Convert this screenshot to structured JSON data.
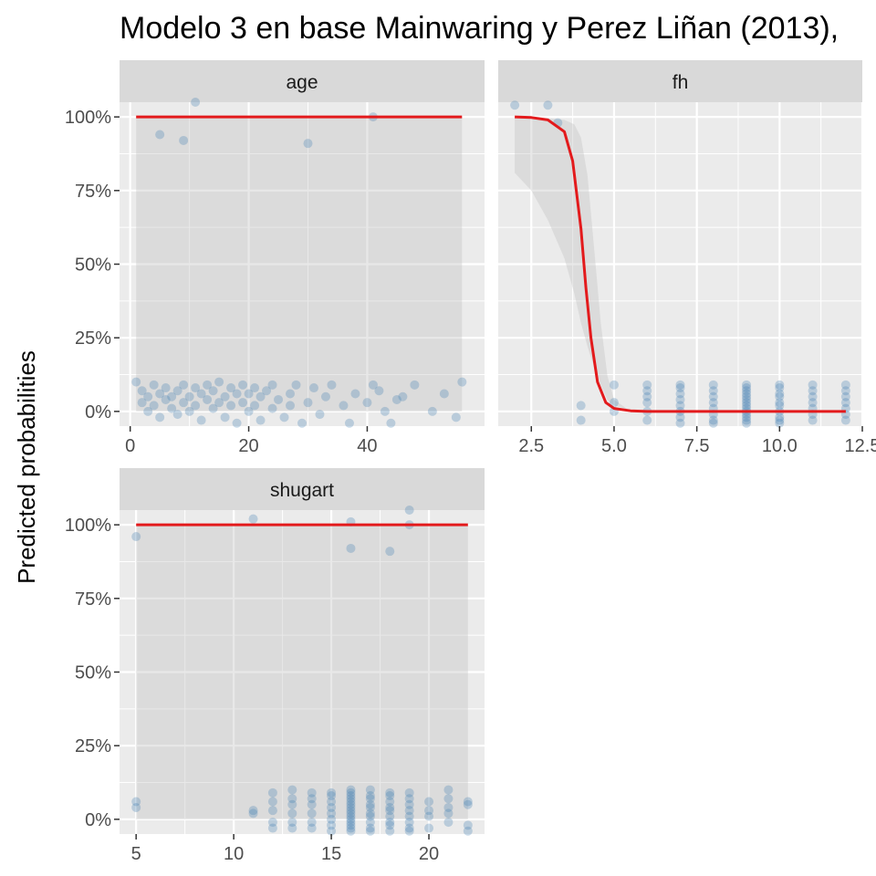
{
  "chart_data": {
    "type": "scatter",
    "title": "Modelo 3 en base Mainwaring y Perez Liñan (2013),",
    "ylabel": "Predicted probabilities",
    "xlabel": "",
    "y_tick_labels": [
      "0%",
      "25%",
      "50%",
      "75%",
      "100%"
    ],
    "ylim": [
      -0.05,
      1.05
    ],
    "grid": true,
    "colors": {
      "points": "#4682B4",
      "line": "#E31A1C",
      "band": "#BEBEBE",
      "panel": "#EBEBEB",
      "strip": "#D9D9D9"
    },
    "panels": [
      {
        "label": "age",
        "xlim": [
          -1.8,
          59.8
        ],
        "x_ticks": [
          0,
          20,
          40
        ],
        "x_tick_labels": [
          "0",
          "20",
          "40"
        ],
        "band": [
          [
            1,
            0.0,
            1.0
          ],
          [
            56,
            0.0,
            1.0
          ]
        ],
        "curve": [
          [
            1,
            1.0
          ],
          [
            56,
            1.0
          ]
        ],
        "points": [
          [
            5,
            0.94
          ],
          [
            9,
            0.92
          ],
          [
            11,
            1.05
          ],
          [
            30,
            0.91
          ],
          [
            41,
            1.0
          ],
          [
            1,
            0.1
          ],
          [
            2,
            0.07
          ],
          [
            2,
            0.03
          ],
          [
            3,
            0.05
          ],
          [
            3,
            0.0
          ],
          [
            4,
            0.09
          ],
          [
            4,
            0.02
          ],
          [
            5,
            0.06
          ],
          [
            5,
            -0.02
          ],
          [
            6,
            0.04
          ],
          [
            6,
            0.08
          ],
          [
            7,
            0.01
          ],
          [
            7,
            0.05
          ],
          [
            8,
            0.07
          ],
          [
            8,
            -0.01
          ],
          [
            9,
            0.03
          ],
          [
            9,
            0.09
          ],
          [
            10,
            0.0
          ],
          [
            10,
            0.05
          ],
          [
            11,
            0.08
          ],
          [
            11,
            0.02
          ],
          [
            12,
            0.06
          ],
          [
            12,
            -0.03
          ],
          [
            13,
            0.04
          ],
          [
            13,
            0.09
          ],
          [
            14,
            0.01
          ],
          [
            14,
            0.07
          ],
          [
            15,
            0.03
          ],
          [
            15,
            0.1
          ],
          [
            16,
            -0.02
          ],
          [
            16,
            0.05
          ],
          [
            17,
            0.08
          ],
          [
            17,
            0.02
          ],
          [
            18,
            0.06
          ],
          [
            18,
            -0.04
          ],
          [
            19,
            0.03
          ],
          [
            19,
            0.09
          ],
          [
            20,
            0.0
          ],
          [
            20,
            0.06
          ],
          [
            21,
            0.08
          ],
          [
            21,
            0.02
          ],
          [
            22,
            0.05
          ],
          [
            22,
            -0.03
          ],
          [
            23,
            0.07
          ],
          [
            24,
            0.01
          ],
          [
            24,
            0.09
          ],
          [
            25,
            0.04
          ],
          [
            26,
            -0.02
          ],
          [
            27,
            0.06
          ],
          [
            27,
            0.02
          ],
          [
            28,
            0.09
          ],
          [
            29,
            -0.04
          ],
          [
            30,
            0.03
          ],
          [
            31,
            0.08
          ],
          [
            32,
            -0.01
          ],
          [
            33,
            0.05
          ],
          [
            34,
            0.09
          ],
          [
            36,
            0.02
          ],
          [
            37,
            -0.04
          ],
          [
            38,
            0.06
          ],
          [
            40,
            0.03
          ],
          [
            41,
            0.09
          ],
          [
            42,
            0.07
          ],
          [
            43,
            0.0
          ],
          [
            44,
            -0.04
          ],
          [
            45,
            0.04
          ],
          [
            46,
            0.05
          ],
          [
            48,
            0.09
          ],
          [
            51,
            0.0
          ],
          [
            53,
            0.06
          ],
          [
            55,
            -0.02
          ],
          [
            56,
            0.1
          ]
        ]
      },
      {
        "label": "fh",
        "xlim": [
          1.5,
          12.5
        ],
        "x_ticks": [
          2.5,
          5,
          7.5,
          10,
          12.5
        ],
        "x_tick_labels": [
          "2.5",
          "5.0",
          "7.5",
          "10.0",
          "12.5"
        ],
        "band": [
          [
            2,
            0.81,
            1.0
          ],
          [
            2.5,
            0.75,
            1.0
          ],
          [
            3.0,
            0.65,
            0.995
          ],
          [
            3.5,
            0.52,
            0.99
          ],
          [
            3.8,
            0.4,
            0.975
          ],
          [
            4.0,
            0.3,
            0.93
          ],
          [
            4.2,
            0.22,
            0.8
          ],
          [
            4.4,
            0.15,
            0.55
          ],
          [
            4.6,
            0.09,
            0.3
          ],
          [
            4.8,
            0.04,
            0.12
          ],
          [
            5.0,
            0.02,
            0.04
          ],
          [
            5.5,
            0.005,
            0.0
          ],
          [
            6,
            0.002,
            0.0
          ],
          [
            7,
            0.0,
            0.0
          ],
          [
            12,
            0.0,
            0.0
          ]
        ],
        "curve": [
          [
            2,
            1.0
          ],
          [
            2.5,
            0.998
          ],
          [
            3.0,
            0.99
          ],
          [
            3.5,
            0.95
          ],
          [
            3.75,
            0.85
          ],
          [
            4.0,
            0.62
          ],
          [
            4.15,
            0.42
          ],
          [
            4.3,
            0.25
          ],
          [
            4.5,
            0.1
          ],
          [
            4.75,
            0.03
          ],
          [
            5.0,
            0.01
          ],
          [
            5.5,
            0.002
          ],
          [
            6,
            0.0
          ],
          [
            12,
            0.0
          ]
        ],
        "points": [
          [
            2,
            1.04
          ],
          [
            3,
            1.04
          ],
          [
            3.3,
            0.98
          ],
          [
            4,
            0.02
          ],
          [
            4,
            -0.03
          ],
          [
            5,
            0.09
          ],
          [
            5,
            0.03
          ],
          [
            5,
            0.0
          ],
          [
            6,
            0.09
          ],
          [
            6,
            0.07
          ],
          [
            6,
            0.05
          ],
          [
            6,
            0.03
          ],
          [
            6,
            0.0
          ],
          [
            6,
            -0.03
          ],
          [
            7,
            0.09
          ],
          [
            7,
            0.08
          ],
          [
            7,
            0.06
          ],
          [
            7,
            0.04
          ],
          [
            7,
            0.02
          ],
          [
            7,
            0.0
          ],
          [
            7,
            -0.02
          ],
          [
            7,
            -0.04
          ],
          [
            8,
            0.09
          ],
          [
            8,
            0.07
          ],
          [
            8,
            0.05
          ],
          [
            8,
            0.03
          ],
          [
            8,
            0.01
          ],
          [
            8,
            -0.01
          ],
          [
            8,
            -0.03
          ],
          [
            8,
            -0.04
          ],
          [
            9,
            0.09
          ],
          [
            9,
            0.08
          ],
          [
            9,
            0.07
          ],
          [
            9,
            0.06
          ],
          [
            9,
            0.05
          ],
          [
            9,
            0.04
          ],
          [
            9,
            0.03
          ],
          [
            9,
            0.02
          ],
          [
            9,
            0.01
          ],
          [
            9,
            0.0
          ],
          [
            9,
            -0.01
          ],
          [
            9,
            -0.02
          ],
          [
            9,
            -0.03
          ],
          [
            9,
            -0.04
          ],
          [
            10,
            0.09
          ],
          [
            10,
            0.08
          ],
          [
            10,
            0.06
          ],
          [
            10,
            0.05
          ],
          [
            10,
            0.03
          ],
          [
            10,
            0.02
          ],
          [
            10,
            0.0
          ],
          [
            10,
            -0.02
          ],
          [
            10,
            -0.03
          ],
          [
            10,
            -0.04
          ],
          [
            11,
            0.09
          ],
          [
            11,
            0.07
          ],
          [
            11,
            0.05
          ],
          [
            11,
            0.03
          ],
          [
            11,
            0.01
          ],
          [
            11,
            -0.01
          ],
          [
            11,
            -0.03
          ],
          [
            12,
            0.09
          ],
          [
            12,
            0.07
          ],
          [
            12,
            0.05
          ],
          [
            12,
            0.03
          ],
          [
            12,
            0.01
          ],
          [
            12,
            -0.01
          ],
          [
            12,
            -0.03
          ]
        ]
      },
      {
        "label": "shugart",
        "xlim": [
          4.15,
          22.85
        ],
        "x_ticks": [
          5,
          10,
          15,
          20
        ],
        "x_tick_labels": [
          "5",
          "10",
          "15",
          "20"
        ],
        "band": [
          [
            5,
            0.0,
            1.0
          ],
          [
            22,
            0.0,
            1.0
          ]
        ],
        "curve": [
          [
            5,
            1.0
          ],
          [
            22,
            1.0
          ]
        ],
        "points": [
          [
            5,
            0.96
          ],
          [
            11,
            1.02
          ],
          [
            16,
            1.01
          ],
          [
            16,
            0.92
          ],
          [
            18,
            0.91
          ],
          [
            19,
            1.05
          ],
          [
            19,
            1.0
          ],
          [
            5,
            0.06
          ],
          [
            5,
            0.04
          ],
          [
            11,
            0.03
          ],
          [
            11,
            0.02
          ],
          [
            12,
            0.09
          ],
          [
            12,
            0.06
          ],
          [
            12,
            0.03
          ],
          [
            12,
            -0.01
          ],
          [
            12,
            -0.03
          ],
          [
            13,
            0.1
          ],
          [
            13,
            0.07
          ],
          [
            13,
            0.05
          ],
          [
            13,
            0.02
          ],
          [
            13,
            -0.01
          ],
          [
            13,
            -0.03
          ],
          [
            14,
            0.09
          ],
          [
            14,
            0.07
          ],
          [
            14,
            0.05
          ],
          [
            14,
            0.02
          ],
          [
            14,
            -0.01
          ],
          [
            14,
            -0.03
          ],
          [
            15,
            0.09
          ],
          [
            15,
            0.08
          ],
          [
            15,
            0.06
          ],
          [
            15,
            0.04
          ],
          [
            15,
            0.02
          ],
          [
            15,
            0.0
          ],
          [
            15,
            -0.02
          ],
          [
            15,
            -0.04
          ],
          [
            16,
            0.1
          ],
          [
            16,
            0.09
          ],
          [
            16,
            0.08
          ],
          [
            16,
            0.07
          ],
          [
            16,
            0.06
          ],
          [
            16,
            0.05
          ],
          [
            16,
            0.04
          ],
          [
            16,
            0.03
          ],
          [
            16,
            0.02
          ],
          [
            16,
            0.01
          ],
          [
            16,
            0.0
          ],
          [
            16,
            -0.01
          ],
          [
            16,
            -0.02
          ],
          [
            16,
            -0.03
          ],
          [
            16,
            -0.04
          ],
          [
            17,
            0.1
          ],
          [
            17,
            0.08
          ],
          [
            17,
            0.07
          ],
          [
            17,
            0.05
          ],
          [
            17,
            0.04
          ],
          [
            17,
            0.02
          ],
          [
            17,
            0.01
          ],
          [
            17,
            -0.01
          ],
          [
            17,
            -0.03
          ],
          [
            17,
            -0.04
          ],
          [
            18,
            0.09
          ],
          [
            18,
            0.08
          ],
          [
            18,
            0.06
          ],
          [
            18,
            0.04
          ],
          [
            18,
            0.03
          ],
          [
            18,
            0.01
          ],
          [
            18,
            -0.01
          ],
          [
            18,
            -0.02
          ],
          [
            18,
            -0.04
          ],
          [
            19,
            0.09
          ],
          [
            19,
            0.07
          ],
          [
            19,
            0.05
          ],
          [
            19,
            0.03
          ],
          [
            19,
            0.01
          ],
          [
            19,
            -0.01
          ],
          [
            19,
            -0.03
          ],
          [
            19,
            -0.04
          ],
          [
            20,
            0.06
          ],
          [
            20,
            0.03
          ],
          [
            20,
            0.01
          ],
          [
            20,
            -0.03
          ],
          [
            21,
            0.1
          ],
          [
            21,
            0.07
          ],
          [
            21,
            0.04
          ],
          [
            21,
            0.02
          ],
          [
            21,
            -0.01
          ],
          [
            22,
            0.06
          ],
          [
            22,
            0.05
          ],
          [
            22,
            -0.02
          ],
          [
            22,
            -0.04
          ]
        ]
      }
    ]
  }
}
